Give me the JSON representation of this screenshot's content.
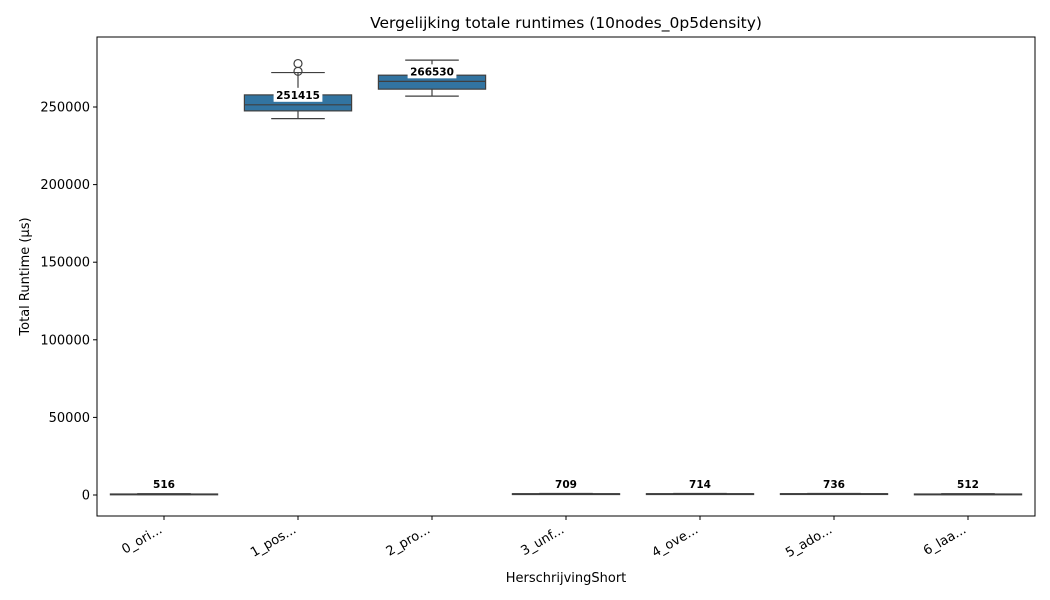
{
  "chart_data": {
    "type": "box",
    "title": "Vergelijking totale runtimes (10nodes_0p5density)",
    "xlabel": "HerschrijvingShort",
    "ylabel": "Total Runtime (µs)",
    "ylim": [
      -14000,
      293000
    ],
    "yticks": [
      0,
      50000,
      100000,
      150000,
      200000,
      250000
    ],
    "ytick_labels": [
      "0",
      "50000",
      "100000",
      "150000",
      "200000",
      "250000"
    ],
    "categories": [
      "0_ori...",
      "1_pos...",
      "2_pro...",
      "3_unf...",
      "4_ove...",
      "5_ado...",
      "6_laa..."
    ],
    "box_color": "#3274a1",
    "series": [
      {
        "whisker_low": 300,
        "q1": 420,
        "median": 516,
        "q3": 650,
        "whisker_high": 800,
        "outliers": [],
        "median_label": "516"
      },
      {
        "whisker_low": 242500,
        "q1": 247500,
        "median": 251415,
        "q3": 257800,
        "whisker_high": 272200,
        "outliers": [
          273000,
          278000
        ],
        "median_label": "251415"
      },
      {
        "whisker_low": 257000,
        "q1": 261500,
        "median": 266530,
        "q3": 270500,
        "whisker_high": 280200,
        "outliers": [],
        "median_label": "266530"
      },
      {
        "whisker_low": 450,
        "q1": 600,
        "median": 709,
        "q3": 820,
        "whisker_high": 1000,
        "outliers": [],
        "median_label": "709"
      },
      {
        "whisker_low": 450,
        "q1": 600,
        "median": 714,
        "q3": 830,
        "whisker_high": 1000,
        "outliers": [],
        "median_label": "714"
      },
      {
        "whisker_low": 470,
        "q1": 620,
        "median": 736,
        "q3": 850,
        "whisker_high": 1020,
        "outliers": [],
        "median_label": "736"
      },
      {
        "whisker_low": 300,
        "q1": 420,
        "median": 512,
        "q3": 640,
        "whisker_high": 800,
        "outliers": [],
        "median_label": "512"
      }
    ]
  }
}
